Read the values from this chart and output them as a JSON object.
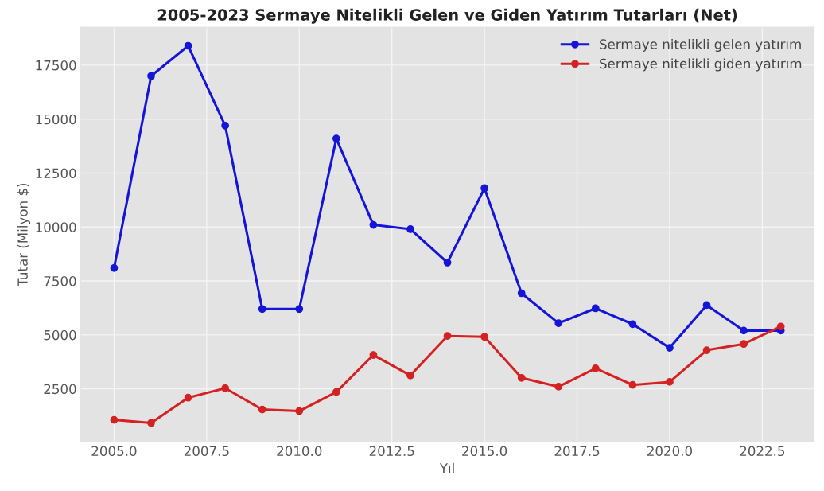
{
  "chart_data": {
    "type": "line",
    "title": "2005-2023 Sermaye Nitelikli Gelen ve Giden Yatırım Tutarları (Net)",
    "xlabel": "Yıl",
    "ylabel": "Tutar (Milyon $)",
    "x": [
      2005,
      2006,
      2007,
      2008,
      2009,
      2010,
      2011,
      2012,
      2013,
      2014,
      2015,
      2016,
      2017,
      2018,
      2019,
      2020,
      2021,
      2022,
      2023
    ],
    "series": [
      {
        "name": "Sermaye nitelikli gelen yatırım",
        "color": "#1515d8",
        "values": [
          8100,
          17000,
          18400,
          14700,
          6200,
          6200,
          14100,
          10100,
          9900,
          8350,
          11800,
          6930,
          5540,
          6230,
          5500,
          4400,
          6380,
          5200,
          5200
        ]
      },
      {
        "name": "Sermaye nitelikli giden yatırım",
        "color": "#d42222",
        "values": [
          1060,
          920,
          2090,
          2530,
          1540,
          1470,
          2350,
          4070,
          3120,
          4950,
          4910,
          3010,
          2600,
          3450,
          2680,
          2820,
          4290,
          4580,
          5390
        ]
      }
    ],
    "xlim": [
      2004.1,
      2023.9
    ],
    "ylim": [
      40,
      19270
    ],
    "xticks": [
      {
        "value": 2005,
        "label": "2005.0"
      },
      {
        "value": 2007.5,
        "label": "2007.5"
      },
      {
        "value": 2010,
        "label": "2010.0"
      },
      {
        "value": 2012.5,
        "label": "2012.5"
      },
      {
        "value": 2015,
        "label": "2015.0"
      },
      {
        "value": 2017.5,
        "label": "2017.5"
      },
      {
        "value": 2020,
        "label": "2020.0"
      },
      {
        "value": 2022.5,
        "label": "2022.5"
      }
    ],
    "yticks": [
      2500,
      5000,
      7500,
      10000,
      12500,
      15000,
      17500
    ],
    "grid": true,
    "legend": "top right",
    "marker": "circle",
    "line_style": "solid"
  }
}
